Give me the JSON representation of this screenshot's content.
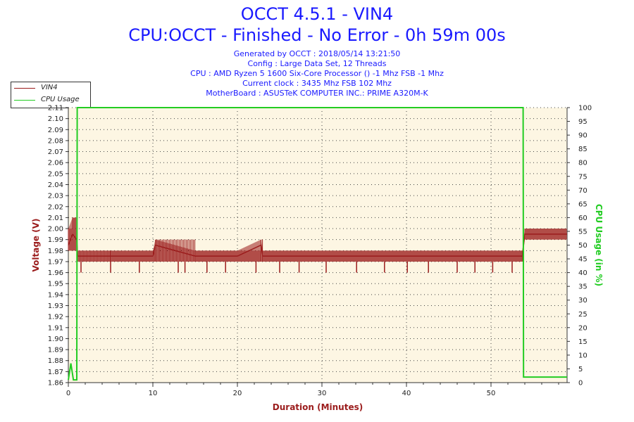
{
  "header": {
    "title1": "OCCT 4.5.1 - VIN4",
    "title2": "CPU:OCCT - Finished - No Error - 0h 59m 00s",
    "info": [
      "Generated by OCCT : 2018/05/14 13:21:50",
      "Config : Large Data Set, 12 Threads",
      "CPU : AMD Ryzen 5 1600 Six-Core Processor () -1 Mhz FSB -1 Mhz",
      "Current clock : 3435 Mhz FSB 102 Mhz",
      "MotherBoard : ASUSTeK COMPUTER INC.: PRIME A320M-K"
    ]
  },
  "legend": [
    {
      "label": "VIN4",
      "color": "#9b1c1c"
    },
    {
      "label": "CPU Usage",
      "color": "#22cc22"
    }
  ],
  "chart_data": {
    "type": "line",
    "title": "OCCT 4.5.1 - VIN4",
    "subtitle": "CPU:OCCT - Finished - No Error - 0h 59m 00s",
    "xlabel": "Duration (Minutes)",
    "ylabel": "Voltage (V)",
    "y2label": "CPU Usage (in %)",
    "xlim": [
      0,
      59
    ],
    "ylim": [
      1.86,
      2.11
    ],
    "y2lim": [
      0,
      100
    ],
    "xticks": [
      0,
      10,
      20,
      30,
      40,
      50
    ],
    "yticks": [
      "1.86",
      "1.87",
      "1.88",
      "1.89",
      "1.90",
      "1.91",
      "1.92",
      "1.93",
      "1.94",
      "1.95",
      "1.96",
      "1.97",
      "1.98",
      "1.99",
      "2.00",
      "2.01",
      "2.02",
      "2.03",
      "2.04",
      "2.05",
      "2.06",
      "2.07",
      "2.08",
      "2.09",
      "2.10",
      "2.11"
    ],
    "y2ticks": [
      "0",
      "5",
      "10",
      "15",
      "20",
      "25",
      "30",
      "35",
      "40",
      "45",
      "50",
      "55",
      "60",
      "65",
      "70",
      "75",
      "80",
      "85",
      "90",
      "95",
      "100"
    ],
    "grid": true,
    "background": "#fdf6e3",
    "series": [
      {
        "name": "VIN4",
        "axis": "left",
        "color": "#9b1c1c",
        "x": [
          0,
          0.5,
          1.0,
          1.1,
          5,
          10,
          10.3,
          15,
          20,
          22.8,
          23,
          30,
          40,
          50,
          53.7,
          54.0,
          56,
          59
        ],
        "y": [
          1.985,
          1.995,
          1.99,
          1.975,
          1.975,
          1.975,
          1.985,
          1.975,
          1.975,
          1.985,
          1.975,
          1.975,
          1.975,
          1.975,
          1.975,
          1.995,
          1.995,
          1.995
        ],
        "band_low": [
          1.98,
          1.98,
          1.98,
          1.97,
          1.97,
          1.97,
          1.97,
          1.97,
          1.97,
          1.97,
          1.97,
          1.97,
          1.97,
          1.97,
          1.97,
          1.99,
          1.99,
          1.99
        ],
        "band_high": [
          2.0,
          2.01,
          2.01,
          1.98,
          1.98,
          1.98,
          1.99,
          1.98,
          1.98,
          1.99,
          1.98,
          1.98,
          1.98,
          1.98,
          1.98,
          2.0,
          2.0,
          2.0
        ],
        "dips_x": [
          1.5,
          5,
          8.4,
          13,
          13.8,
          16.4,
          18.6,
          22.2,
          25,
          27.3,
          30.5,
          34.1,
          37.4,
          40.1,
          42.6,
          46,
          48.1,
          50.2,
          52.5
        ],
        "dips_y": 1.96
      },
      {
        "name": "CPU Usage",
        "axis": "right",
        "color": "#22cc22",
        "x": [
          0,
          0.3,
          0.6,
          1.0,
          1.05,
          53.8,
          53.85,
          54.2,
          59
        ],
        "y": [
          1,
          7,
          1,
          1,
          100,
          100,
          2,
          2,
          2
        ]
      }
    ]
  }
}
